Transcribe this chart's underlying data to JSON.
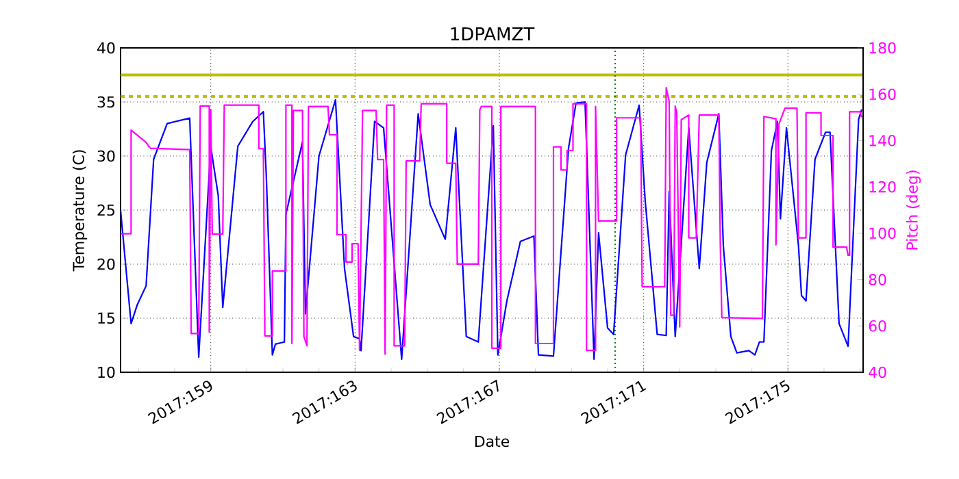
{
  "chart_data": {
    "type": "line",
    "title": "1DPAMZT",
    "xlabel": "Date",
    "ylabel": "Temperature (C)",
    "y2label": "Pitch (deg)",
    "xlim": [
      "2017-06-05T12:00",
      "2017-06-26T02:00"
    ],
    "ylim": [
      10,
      40
    ],
    "y2lim": [
      40,
      180
    ],
    "xticks": [
      {
        "value": "2017-06-08",
        "label": "2017:159"
      },
      {
        "value": "2017-06-12",
        "label": "2017:163"
      },
      {
        "value": "2017-06-16",
        "label": "2017:167"
      },
      {
        "value": "2017-06-20",
        "label": "2017:171"
      },
      {
        "value": "2017-06-24",
        "label": "2017:175"
      }
    ],
    "yticks": [
      10,
      15,
      20,
      25,
      30,
      35,
      40
    ],
    "y2ticks": [
      40,
      60,
      80,
      100,
      120,
      140,
      160,
      180
    ],
    "grid": true,
    "ref_lines": [
      {
        "axis": "y",
        "value": 37.5,
        "color": "#bfbf00",
        "line_style": "solid"
      },
      {
        "axis": "y",
        "value": 35.5,
        "color": "#bfbf00",
        "line_style": "dashed"
      },
      {
        "axis": "x",
        "value": "2017-06-19T05:00",
        "color": "#008000",
        "line_style": "dotted"
      }
    ],
    "series": [
      {
        "color": "#0000ff",
        "x": [
          "2017-06-05T12:00",
          "2017-06-05T19:00",
          "2017-06-05T23:00",
          "2017-06-06T05:00",
          "2017-06-06T10:00",
          "2017-06-06T19:00",
          "2017-06-07T10:00",
          "2017-06-07T16:00",
          "2017-06-08T00:00",
          "2017-06-08T05:00",
          "2017-06-08T08:00",
          "2017-06-08T18:00",
          "2017-06-09T04:00",
          "2017-06-09T11:00",
          "2017-06-09T13:00",
          "2017-06-09T17:00",
          "2017-06-09T19:00",
          "2017-06-10T01:00",
          "2017-06-10T02:00",
          "2017-06-10T13:00",
          "2017-06-10T15:00",
          "2017-06-11T00:00",
          "2017-06-11T11:00",
          "2017-06-11T17:00",
          "2017-06-11T23:00",
          "2017-06-12T03:00",
          "2017-06-12T04:00",
          "2017-06-12T13:00",
          "2017-06-12T19:00",
          "2017-06-13T07:00",
          "2017-06-13T18:00",
          "2017-06-14T02:00",
          "2017-06-14T12:00",
          "2017-06-14T19:00",
          "2017-06-15T02:00",
          "2017-06-15T10:00",
          "2017-06-15T20:00",
          "2017-06-15T23:00",
          "2017-06-16T05:00",
          "2017-06-16T14:00",
          "2017-06-16T23:00",
          "2017-06-17T02:00",
          "2017-06-17T12:00",
          "2017-06-17T22:00",
          "2017-06-18T03:00",
          "2017-06-18T09:00",
          "2017-06-18T15:00",
          "2017-06-18T18:00",
          "2017-06-19T00:00",
          "2017-06-19T04:00",
          "2017-06-19T12:00",
          "2017-06-19T21:00",
          "2017-06-20T01:00",
          "2017-06-20T09:00",
          "2017-06-20T15:00",
          "2017-06-20T17:00",
          "2017-06-20T21:00",
          "2017-06-21T06:00",
          "2017-06-21T13:00",
          "2017-06-21T18:00",
          "2017-06-22T02:00",
          "2017-06-22T05:00",
          "2017-06-22T10:00",
          "2017-06-22T14:00",
          "2017-06-22T22:00",
          "2017-06-23T02:00",
          "2017-06-23T05:00",
          "2017-06-23T08:00",
          "2017-06-23T13:00",
          "2017-06-23T17:00",
          "2017-06-23T19:00",
          "2017-06-23T23:00",
          "2017-06-24T07:00",
          "2017-06-24T09:00",
          "2017-06-24T12:00",
          "2017-06-24T18:00",
          "2017-06-25T01:00",
          "2017-06-25T04:00",
          "2017-06-25T10:00",
          "2017-06-25T16:00",
          "2017-06-25T23:00",
          "2017-06-26T01:00"
        ],
        "values": [
          25.0,
          14.5,
          16.2,
          18.0,
          29.7,
          33.0,
          33.5,
          11.4,
          30.9,
          26.3,
          16.0,
          30.9,
          33.2,
          34.1,
          28.0,
          11.6,
          12.6,
          12.8,
          24.6,
          31.3,
          15.4,
          30.0,
          35.2,
          19.6,
          13.3,
          13.1,
          12.0,
          33.2,
          32.6,
          11.2,
          33.9,
          25.5,
          22.3,
          32.6,
          13.3,
          12.8,
          32.8,
          11.6,
          16.6,
          22.1,
          22.6,
          11.6,
          11.5,
          30.7,
          34.9,
          35.0,
          11.2,
          22.9,
          14.1,
          13.5,
          30.1,
          34.7,
          25.9,
          13.5,
          13.4,
          26.7,
          13.3,
          32.6,
          19.6,
          29.4,
          33.9,
          21.7,
          13.3,
          11.8,
          12.0,
          11.6,
          12.8,
          12.8,
          30.5,
          33.2,
          24.2,
          32.6,
          21.7,
          17.1,
          16.6,
          29.7,
          32.2,
          32.2,
          14.5,
          12.4,
          33.4,
          34.3
        ]
      },
      {
        "color": "#ff00ff",
        "axis": "y2",
        "x": [
          "2017-06-05T12:00",
          "2017-06-05T19:00",
          "2017-06-05T19:00",
          "2017-06-06T05:00",
          "2017-06-06T07:00",
          "2017-06-06T08:00",
          "2017-06-07T10:00",
          "2017-06-07T11:00",
          "2017-06-07T16:00",
          "2017-06-07T17:00",
          "2017-06-07T23:00",
          "2017-06-07T23:00",
          "2017-06-08T00:00",
          "2017-06-08T01:00",
          "2017-06-08T08:00",
          "2017-06-08T09:00",
          "2017-06-09T08:00",
          "2017-06-09T08:00",
          "2017-06-09T11:00",
          "2017-06-09T12:00",
          "2017-06-09T17:00",
          "2017-06-09T17:00",
          "2017-06-10T02:00",
          "2017-06-10T02:00",
          "2017-06-10T06:00",
          "2017-06-10T06:00",
          "2017-06-10T07:00",
          "2017-06-10T13:00",
          "2017-06-10T14:00",
          "2017-06-10T16:00",
          "2017-06-10T17:00",
          "2017-06-11T06:00",
          "2017-06-11T07:00",
          "2017-06-11T12:00",
          "2017-06-11T12:00",
          "2017-06-11T18:00",
          "2017-06-11T18:00",
          "2017-06-11T22:00",
          "2017-06-11T22:00",
          "2017-06-12T02:00",
          "2017-06-12T03:00",
          "2017-06-12T05:00",
          "2017-06-12T14:00",
          "2017-06-12T15:00",
          "2017-06-12T19:00",
          "2017-06-12T20:00",
          "2017-06-12T21:00",
          "2017-06-13T02:00",
          "2017-06-13T02:00",
          "2017-06-13T09:00",
          "2017-06-13T10:00",
          "2017-06-13T19:00",
          "2017-06-13T20:00",
          "2017-06-14T13:00",
          "2017-06-14T13:00",
          "2017-06-14T19:00",
          "2017-06-14T20:00",
          "2017-06-15T10:00",
          "2017-06-15T11:00",
          "2017-06-15T12:00",
          "2017-06-15T19:00",
          "2017-06-15T19:00",
          "2017-06-16T01:00",
          "2017-06-16T01:00",
          "2017-06-17T00:00",
          "2017-06-17T00:00",
          "2017-06-17T12:00",
          "2017-06-17T12:00",
          "2017-06-17T17:00",
          "2017-06-17T17:00",
          "2017-06-17T21:00",
          "2017-06-17T21:00",
          "2017-06-18T01:00",
          "2017-06-18T01:00",
          "2017-06-18T10:00",
          "2017-06-18T10:00",
          "2017-06-18T16:00",
          "2017-06-18T16:00",
          "2017-06-18T18:00",
          "2017-06-19T06:00",
          "2017-06-19T06:00",
          "2017-06-19T22:00",
          "2017-06-19T23:00",
          "2017-06-20T14:00",
          "2017-06-20T15:00",
          "2017-06-20T17:00",
          "2017-06-20T18:00",
          "2017-06-20T20:00",
          "2017-06-20T21:00",
          "2017-06-20T22:00",
          "2017-06-21T00:00",
          "2017-06-21T01:00",
          "2017-06-21T06:00",
          "2017-06-21T06:00",
          "2017-06-21T11:00",
          "2017-06-21T12:00",
          "2017-06-21T13:00",
          "2017-06-22T02:00",
          "2017-06-22T03:00",
          "2017-06-22T04:00",
          "2017-06-23T07:00",
          "2017-06-23T08:00",
          "2017-06-23T16:00",
          "2017-06-23T16:00",
          "2017-06-23T18:00",
          "2017-06-23T22:00",
          "2017-06-24T06:00",
          "2017-06-24T07:00",
          "2017-06-24T12:00",
          "2017-06-24T12:00",
          "2017-06-24T22:00",
          "2017-06-24T22:00",
          "2017-06-25T06:00",
          "2017-06-25T06:00",
          "2017-06-25T15:00",
          "2017-06-25T16:00",
          "2017-06-25T17:00",
          "2017-06-25T17:00",
          "2017-06-26T00:00",
          "2017-06-26T01:00"
        ],
        "values": [
          99.8,
          99.8,
          144.5,
          139.2,
          137.3,
          136.7,
          136.1,
          56.7,
          56.7,
          154.9,
          154.9,
          57.3,
          153.3,
          99.6,
          99.6,
          155.3,
          155.3,
          136.5,
          136.5,
          55.7,
          55.7,
          83.7,
          83.7,
          155.3,
          155.3,
          52.4,
          153.0,
          153.0,
          55.3,
          51.4,
          154.7,
          154.7,
          142.5,
          142.5,
          99.4,
          99.4,
          87.6,
          87.6,
          95.5,
          95.5,
          49.4,
          153.0,
          153.0,
          131.8,
          131.8,
          47.8,
          155.3,
          155.3,
          51.4,
          51.4,
          131.2,
          131.2,
          155.9,
          155.9,
          130.2,
          130.2,
          86.7,
          86.7,
          153.3,
          154.7,
          154.7,
          50.4,
          50.4,
          154.7,
          154.7,
          52.4,
          52.4,
          137.3,
          137.3,
          127.3,
          127.3,
          135.7,
          135.7,
          155.9,
          155.9,
          49.4,
          49.4,
          154.7,
          105.3,
          105.3,
          149.8,
          149.8,
          76.9,
          76.9,
          162.8,
          156.9,
          64.6,
          64.6,
          154.9,
          152.0,
          59.6,
          149.0,
          151.0,
          98.0,
          98.0,
          124.5,
          151.0,
          151.0,
          95.0,
          63.6,
          63.2,
          150.4,
          149.4,
          95.0,
          147.1,
          154.0,
          154.0,
          98.0,
          98.0,
          152.0,
          152.0,
          142.2,
          142.2,
          94.0,
          94.0,
          90.5,
          90.5,
          152.4,
          152.4,
          150.0
        ]
      }
    ]
  }
}
